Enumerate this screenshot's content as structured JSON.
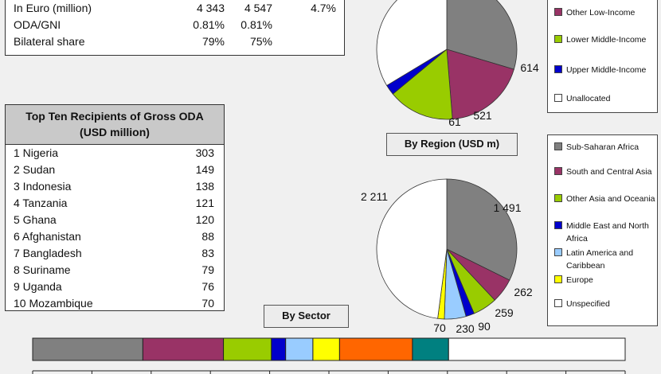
{
  "summary": {
    "rows": [
      {
        "label": "In Euro (million)",
        "v1": "4 343",
        "v2": "4 547",
        "change": "4.7%"
      },
      {
        "label": "ODA/GNI",
        "v1": "0.81%",
        "v2": "0.81%",
        "change": ""
      },
      {
        "label": "Bilateral share",
        "v1": "79%",
        "v2": "75%",
        "change": ""
      }
    ]
  },
  "recipients": {
    "title_line1": "Top Ten Recipients of Gross ODA",
    "title_line2": "(USD million)",
    "rows": [
      {
        "name": "1 Nigeria",
        "value": "303"
      },
      {
        "name": "2 Sudan",
        "value": "149"
      },
      {
        "name": "3 Indonesia",
        "value": "138"
      },
      {
        "name": "4 Tanzania",
        "value": "121"
      },
      {
        "name": "5 Ghana",
        "value": "120"
      },
      {
        "name": "6 Afghanistan",
        "value": "88"
      },
      {
        "name": "7 Bangladesh",
        "value": "83"
      },
      {
        "name": "8 Suriname",
        "value": "79"
      },
      {
        "name": "9 Uganda",
        "value": "76"
      },
      {
        "name": "10 Mozambique",
        "value": "70"
      }
    ]
  },
  "captions": {
    "region": "By Region (USD m)",
    "sector": "By Sector"
  },
  "legend_income": [
    {
      "label": "Other Low-Income",
      "color": "#993366"
    },
    {
      "label": "Lower Middle-Income",
      "color": "#99cc00"
    },
    {
      "label": "Upper Middle-Income",
      "color": "#0000cc"
    },
    {
      "label": "Unallocated",
      "color": "#ffffff"
    }
  ],
  "legend_region": [
    {
      "label": "Sub-Saharan Africa",
      "color": "#808080"
    },
    {
      "label": "South and Central Asia",
      "color": "#993366"
    },
    {
      "label": "Other Asia and Oceania",
      "color": "#99cc00"
    },
    {
      "label": "Middle East and North Africa",
      "color": "#0000cc"
    },
    {
      "label": "Latin America and Caribbean",
      "color": "#99ccff"
    },
    {
      "label": "Europe",
      "color": "#ffff00"
    },
    {
      "label": "Unspecified",
      "color": "#ffffff"
    }
  ],
  "chart_data": [
    {
      "type": "pie",
      "title": "",
      "note": "partially visible income-group pie",
      "slices": [
        {
          "label": "",
          "value": null,
          "display": "",
          "color": "#808080"
        },
        {
          "label": "Other Low-Income",
          "value": 614,
          "display": "614",
          "color": "#993366"
        },
        {
          "label": "Lower Middle-Income",
          "value": 521,
          "display": "521",
          "color": "#99cc00"
        },
        {
          "label": "Upper Middle-Income",
          "value": 61,
          "display": "61",
          "color": "#0000cc"
        },
        {
          "label": "Unallocated",
          "value": null,
          "display": "",
          "color": "#ffffff"
        }
      ]
    },
    {
      "type": "pie",
      "title": "By Region (USD m)",
      "slices": [
        {
          "label": "Sub-Saharan Africa",
          "value": 1491,
          "display": "1 491",
          "color": "#808080"
        },
        {
          "label": "South and Central Asia",
          "value": 262,
          "display": "262",
          "color": "#993366"
        },
        {
          "label": "Other Asia and Oceania",
          "value": 259,
          "display": "259",
          "color": "#99cc00"
        },
        {
          "label": "Middle East and North Africa",
          "value": 90,
          "display": "90",
          "color": "#0000cc"
        },
        {
          "label": "Latin America and Caribbean",
          "value": 230,
          "display": "230",
          "color": "#99ccff"
        },
        {
          "label": "Europe",
          "value": 70,
          "display": "70",
          "color": "#ffff00"
        },
        {
          "label": "Unspecified",
          "value": 2211,
          "display": "2 211",
          "color": "#ffffff"
        }
      ]
    },
    {
      "type": "bar",
      "title": "By Sector",
      "orientation": "horizontal-stacked",
      "segments": [
        {
          "value": 18.6,
          "color": "#808080"
        },
        {
          "value": 13.6,
          "color": "#993366"
        },
        {
          "value": 8.1,
          "color": "#99cc00"
        },
        {
          "value": 2.4,
          "color": "#0000cc"
        },
        {
          "value": 4.6,
          "color": "#99ccff"
        },
        {
          "value": 4.5,
          "color": "#ffff00"
        },
        {
          "value": 12.3,
          "color": "#ff6600"
        },
        {
          "value": 6.1,
          "color": "#008080"
        },
        {
          "value": 29.8,
          "color": "#ffffff"
        }
      ]
    }
  ]
}
